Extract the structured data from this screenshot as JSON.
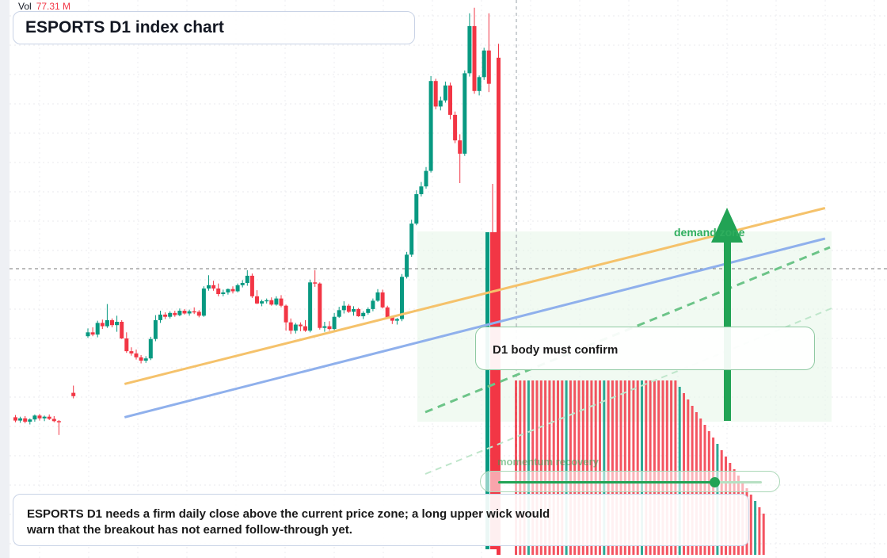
{
  "volume": {
    "label": "Vol",
    "value": "77.31 M"
  },
  "title": "ESPORTS D1 index chart",
  "callouts": {
    "confirm": "D1 body must confirm",
    "zone": "demand zone",
    "progress_label": "momentum recovery",
    "progress_value": 0.82,
    "note": "ESPORTS D1 needs a firm daily close above the current price zone; a long upper wick would warn that the breakout has not earned follow-through yet."
  },
  "colors": {
    "up": "#089981",
    "down": "#f23645",
    "orange_trendline": "#f5c26b",
    "blue_trendline": "#8fb0ec",
    "green_accent": "#22a355",
    "crosshair": "#777777"
  },
  "chart_data": {
    "type": "candlestick",
    "title": "ESPORTS D1 index chart",
    "xlabel": "",
    "ylabel": "",
    "grid": true,
    "price_range": [
      0,
      100
    ],
    "candles": [
      [
        24.8,
        25.2,
        23.9,
        24.2
      ],
      [
        24.2,
        24.9,
        23.8,
        24.6
      ],
      [
        24.6,
        25.0,
        23.7,
        24.0
      ],
      [
        24.0,
        24.6,
        23.5,
        24.4
      ],
      [
        24.4,
        25.3,
        24.0,
        25.1
      ],
      [
        25.1,
        25.4,
        24.2,
        24.6
      ],
      [
        24.6,
        25.1,
        24.1,
        24.9
      ],
      [
        24.9,
        25.3,
        24.3,
        24.5
      ],
      [
        24.5,
        25.0,
        23.9,
        24.1
      ],
      [
        24.1,
        24.3,
        21.6,
        23.9
      ],
      [
        null,
        null,
        null,
        null
      ],
      [
        null,
        null,
        null,
        null
      ],
      [
        29.2,
        30.5,
        28.2,
        28.6
      ],
      [
        null,
        null,
        null,
        null
      ],
      [
        null,
        null,
        null,
        null
      ],
      [
        39.4,
        40.8,
        39.1,
        40.1
      ],
      [
        40.1,
        41.0,
        39.4,
        39.7
      ],
      [
        39.7,
        42.2,
        39.2,
        41.8
      ],
      [
        41.8,
        42.4,
        40.7,
        41.2
      ],
      [
        41.2,
        45.2,
        40.9,
        42.3
      ],
      [
        42.3,
        42.6,
        41.0,
        41.4
      ],
      [
        41.4,
        43.1,
        40.2,
        42.0
      ],
      [
        42.0,
        42.3,
        38.9,
        39.0
      ],
      [
        39.0,
        40.1,
        36.4,
        36.7
      ],
      [
        36.7,
        37.4,
        35.9,
        36.3
      ],
      [
        36.3,
        37.0,
        35.2,
        35.6
      ],
      [
        35.6,
        36.0,
        34.5,
        35.0
      ],
      [
        35.0,
        35.8,
        34.6,
        35.4
      ],
      [
        35.4,
        39.3,
        35.1,
        38.9
      ],
      [
        38.9,
        43.2,
        38.5,
        42.3
      ],
      [
        42.3,
        44.0,
        41.8,
        43.3
      ],
      [
        43.3,
        43.7,
        42.5,
        42.9
      ],
      [
        42.9,
        43.9,
        42.6,
        43.6
      ],
      [
        43.6,
        44.0,
        42.9,
        43.2
      ],
      [
        43.2,
        44.4,
        43.0,
        44.0
      ],
      [
        44.0,
        44.3,
        43.3,
        43.5
      ],
      [
        43.5,
        44.2,
        43.1,
        43.9
      ],
      [
        43.9,
        44.6,
        43.4,
        43.8
      ],
      [
        43.8,
        44.1,
        42.8,
        43.1
      ],
      [
        43.1,
        48.4,
        42.9,
        48.0
      ],
      [
        48.0,
        50.4,
        47.6,
        48.6
      ],
      [
        48.6,
        49.4,
        47.6,
        48.0
      ],
      [
        48.0,
        48.9,
        46.6,
        47.0
      ],
      [
        47.0,
        47.8,
        46.6,
        47.3
      ],
      [
        47.3,
        48.0,
        46.9,
        47.9
      ],
      [
        47.9,
        48.4,
        47.1,
        47.5
      ],
      [
        47.5,
        48.9,
        47.3,
        48.6
      ],
      [
        48.6,
        49.5,
        48.2,
        49.0
      ],
      [
        49.0,
        51.3,
        48.5,
        50.3
      ],
      [
        50.3,
        50.7,
        46.3,
        46.6
      ],
      [
        46.6,
        47.7,
        45.2,
        45.3
      ],
      [
        45.3,
        46.0,
        44.8,
        45.7
      ],
      [
        45.7,
        46.2,
        45.3,
        45.9
      ],
      [
        45.9,
        46.4,
        44.9,
        45.1
      ],
      [
        45.1,
        46.6,
        44.9,
        46.2
      ],
      [
        46.2,
        46.8,
        44.6,
        44.9
      ],
      [
        44.9,
        45.1,
        40.4,
        41.9
      ],
      [
        41.9,
        42.6,
        39.8,
        40.4
      ],
      [
        40.4,
        41.8,
        39.9,
        41.5
      ],
      [
        41.5,
        41.9,
        40.3,
        41.2
      ],
      [
        41.2,
        42.3,
        40.2,
        40.4
      ],
      [
        40.4,
        49.6,
        40.1,
        49.1
      ],
      [
        49.1,
        51.3,
        48.3,
        48.9
      ],
      [
        48.9,
        49.1,
        40.6,
        40.9
      ],
      [
        40.9,
        42.0,
        40.2,
        41.2
      ],
      [
        41.2,
        42.1,
        40.4,
        40.7
      ],
      [
        40.7,
        43.6,
        40.3,
        42.9
      ],
      [
        42.9,
        44.7,
        42.7,
        44.1
      ],
      [
        44.1,
        45.7,
        43.5,
        44.9
      ],
      [
        44.9,
        45.2,
        43.6,
        43.8
      ],
      [
        43.8,
        44.8,
        43.1,
        44.3
      ],
      [
        44.3,
        44.5,
        42.9,
        43.0
      ],
      [
        43.0,
        43.9,
        42.5,
        43.6
      ],
      [
        43.6,
        44.6,
        43.3,
        44.3
      ],
      [
        44.3,
        46.2,
        43.9,
        45.8
      ],
      [
        45.8,
        47.9,
        45.6,
        47.3
      ],
      [
        47.3,
        47.8,
        44.4,
        44.6
      ],
      [
        44.6,
        44.9,
        42.5,
        42.8
      ],
      [
        42.8,
        43.0,
        41.6,
        42.2
      ],
      [
        42.2,
        42.7,
        41.5,
        42.5
      ],
      [
        42.5,
        50.6,
        42.1,
        50.1
      ],
      [
        50.1,
        54.6,
        49.8,
        54.1
      ],
      [
        54.1,
        60.4,
        53.7,
        59.7
      ],
      [
        59.7,
        65.7,
        59.4,
        65.0
      ],
      [
        65.0,
        67.2,
        64.6,
        66.4
      ],
      [
        66.4,
        69.9,
        66.0,
        69.2
      ],
      [
        69.2,
        86.3,
        68.9,
        85.4
      ],
      [
        85.4,
        85.8,
        80.3,
        80.8
      ],
      [
        80.8,
        82.6,
        80.1,
        81.9
      ],
      [
        81.9,
        85.3,
        81.5,
        84.6
      ],
      [
        84.6,
        85.1,
        78.5,
        79.3
      ],
      [
        79.3,
        79.9,
        74.2,
        74.7
      ],
      [
        74.7,
        75.8,
        67.0,
        72.3
      ],
      [
        72.3,
        87.3,
        71.9,
        86.8
      ],
      [
        86.8,
        97.6,
        86.2,
        95.3
      ],
      [
        95.3,
        98.6,
        83.1,
        83.6
      ],
      [
        83.6,
        86.4,
        82.8,
        86.1
      ],
      [
        86.1,
        91.4,
        85.6,
        90.9
      ],
      [
        90.9,
        97.6,
        83.4,
        84.9
      ],
      [
        null,
        null,
        null,
        null
      ],
      [
        89.6,
        92.1,
        0,
        0
      ]
    ],
    "trendlines": [
      {
        "color": "orange",
        "from": [
          23,
          30.8
        ],
        "to": [
          168,
          62.5
        ]
      },
      {
        "color": "blue",
        "from": [
          23,
          24.8
        ],
        "to": [
          168,
          57.0
        ]
      }
    ],
    "annotations": [
      "demand zone",
      "D1 body must confirm",
      "momentum recovery"
    ]
  }
}
